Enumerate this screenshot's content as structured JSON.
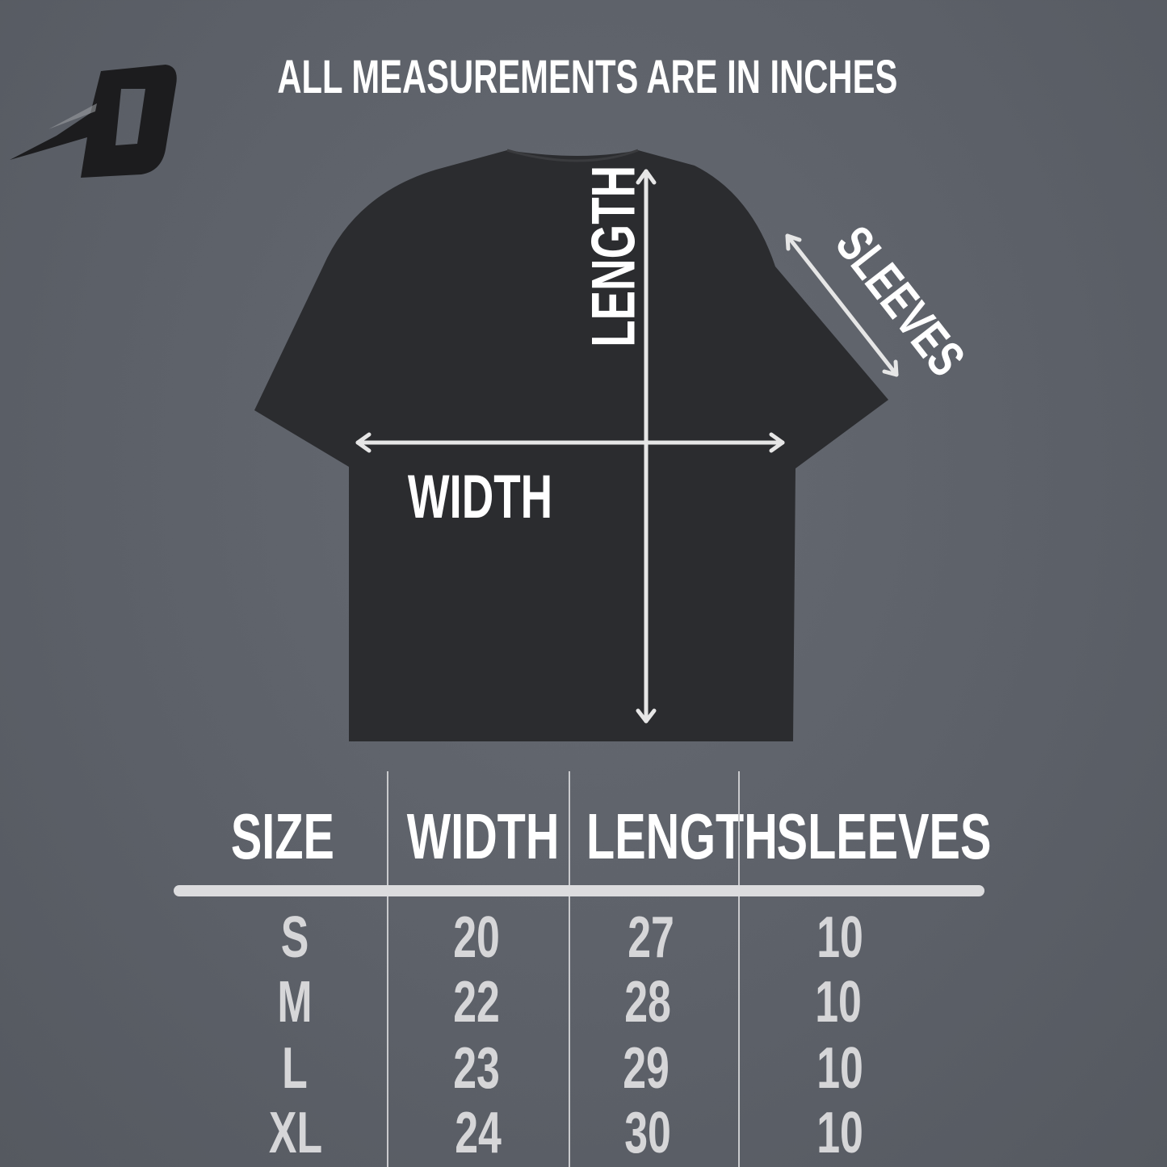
{
  "title": "ALL MEASUREMENTS ARE IN INCHES",
  "logo": {
    "text": "D",
    "icon": "brand-logo-d"
  },
  "diagram": {
    "length_label": "LENGTH",
    "width_label": "WIDTH",
    "sleeves_label": "SLEEVES",
    "shirt_color": "#2b2c2f",
    "arrow_color": "#e6e6e6"
  },
  "table": {
    "headers": [
      "SIZE",
      "WIDTH",
      "LENGTH",
      "SLEEVES"
    ],
    "rows": [
      {
        "size": "S",
        "width": "20",
        "length": "27",
        "sleeves": "10"
      },
      {
        "size": "M",
        "width": "22",
        "length": "28",
        "sleeves": "10"
      },
      {
        "size": "L",
        "width": "23",
        "length": "29",
        "sleeves": "10"
      },
      {
        "size": "XL",
        "width": "24",
        "length": "30",
        "sleeves": "10"
      }
    ]
  }
}
